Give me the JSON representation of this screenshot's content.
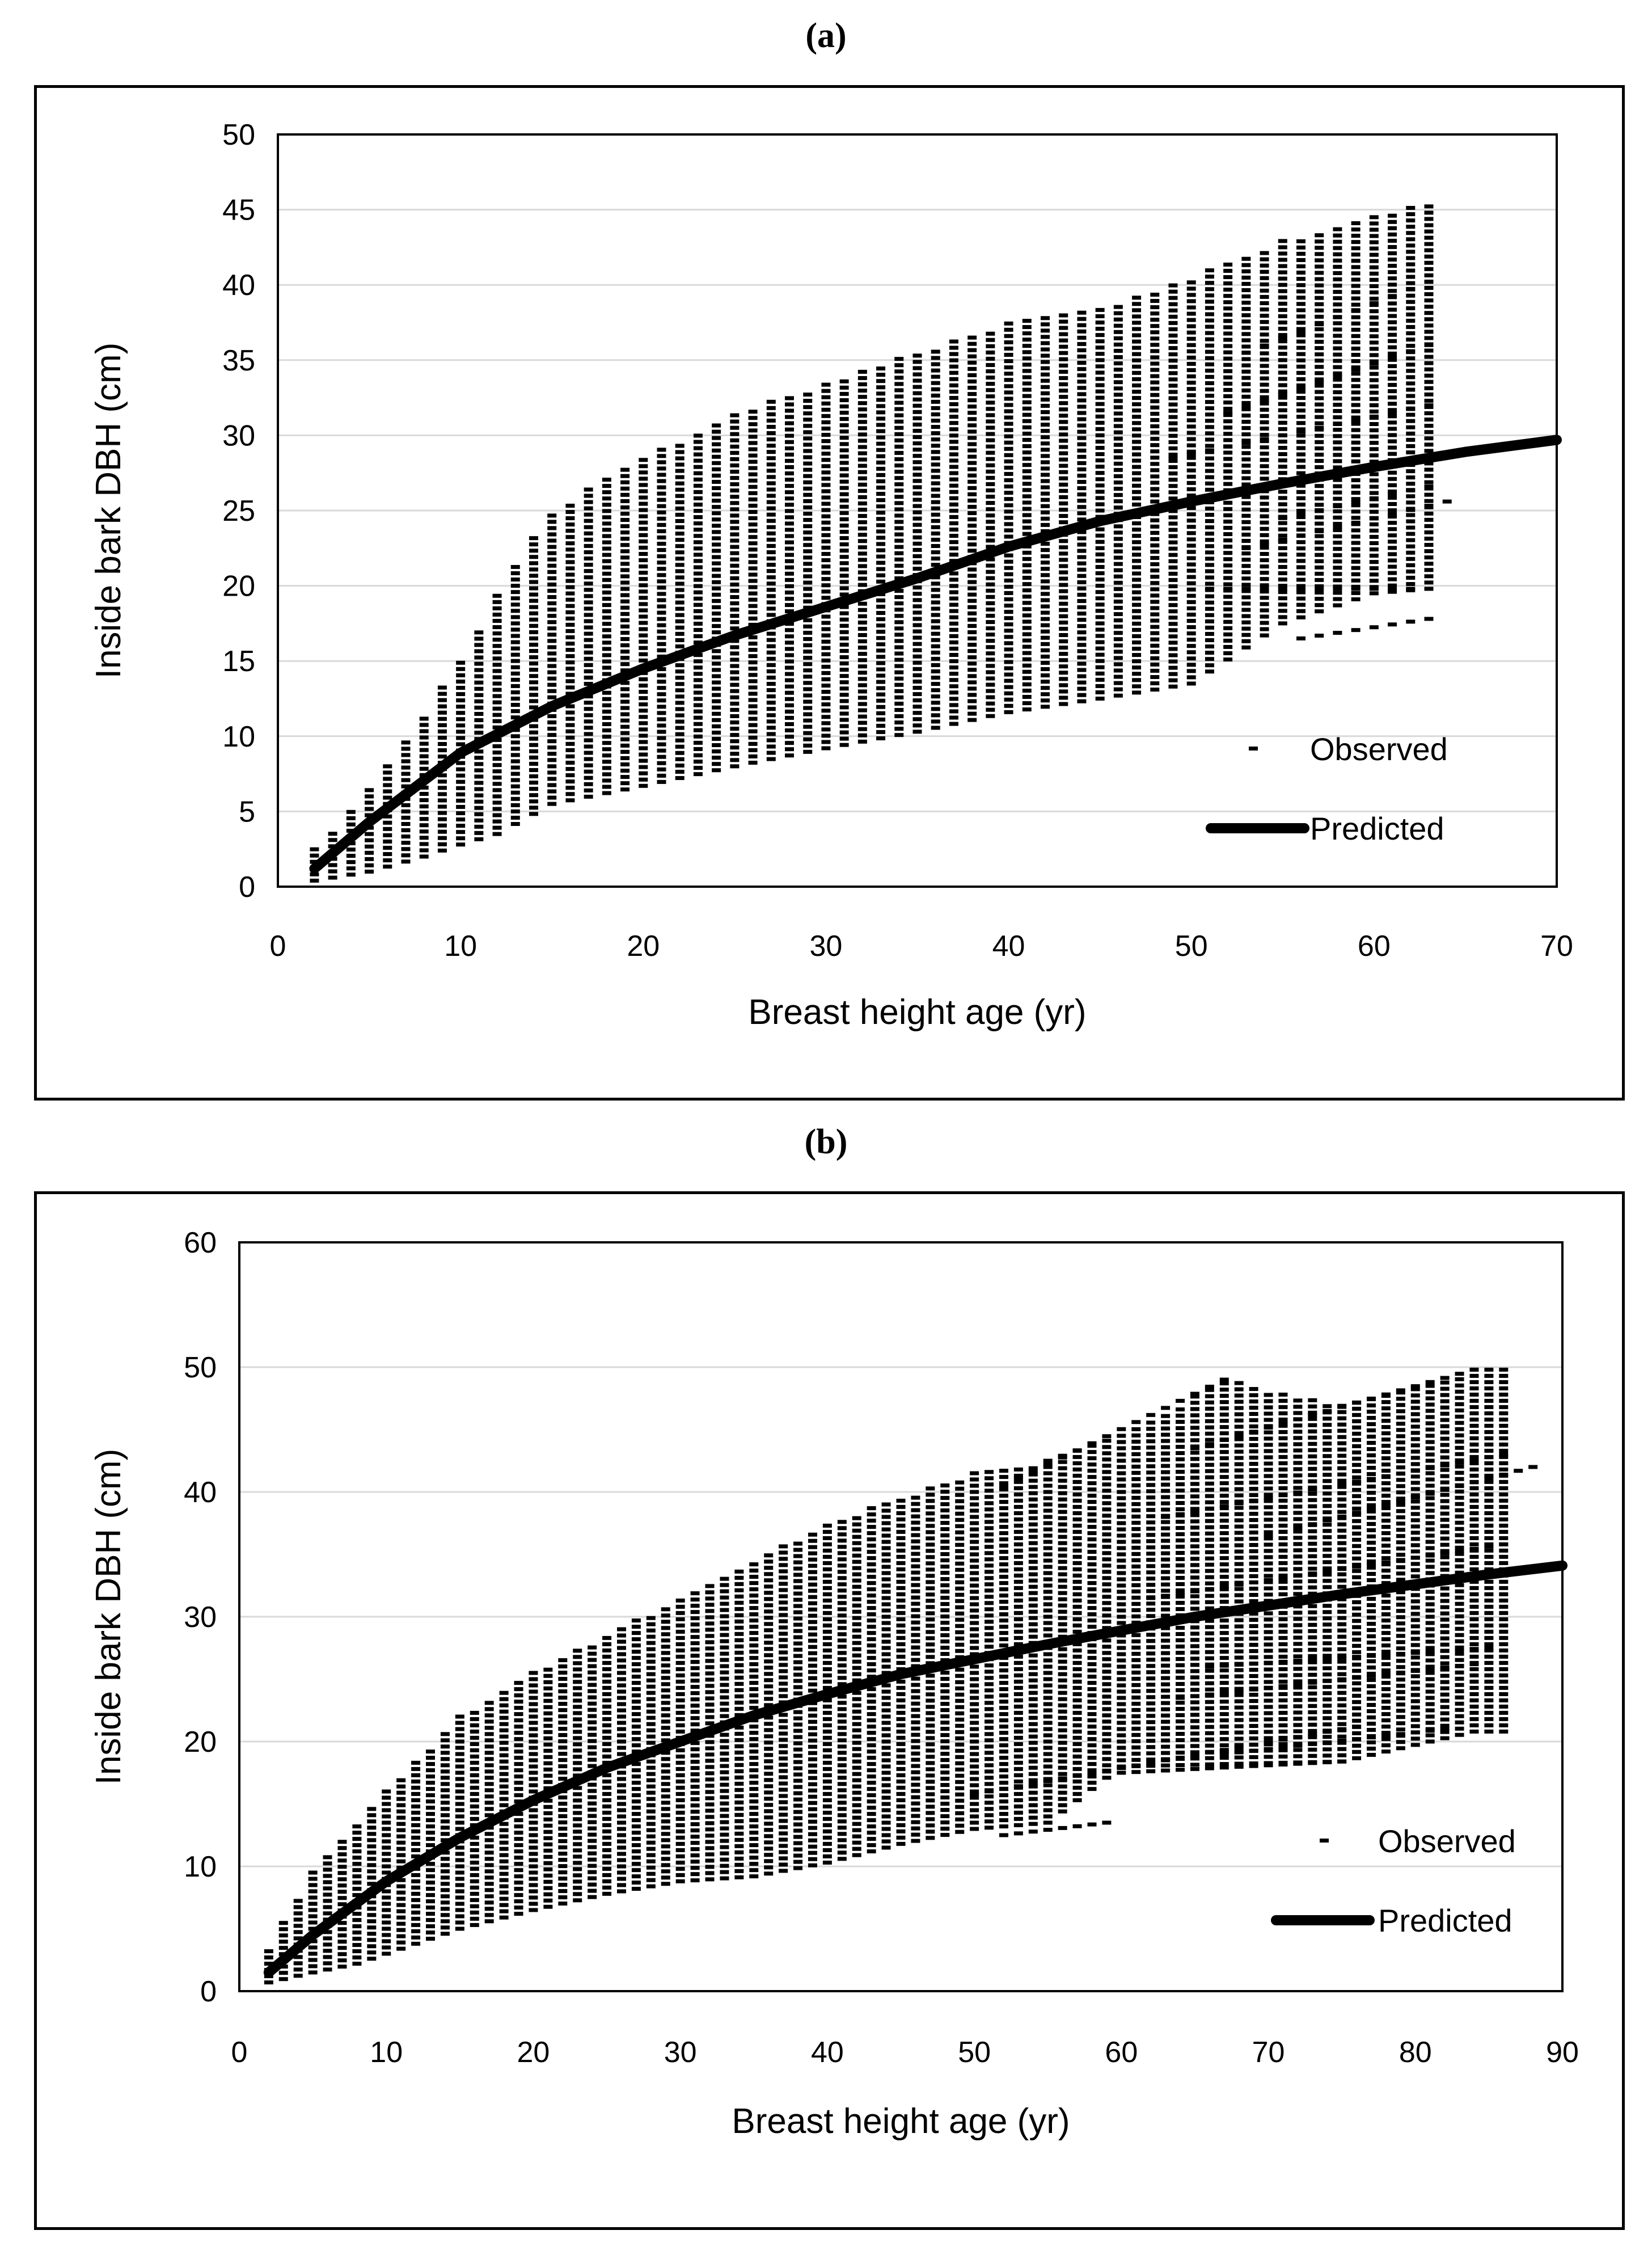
{
  "panel_labels": [
    "(a)",
    "(b)"
  ],
  "chart_data": [
    {
      "type": "scatter",
      "panel": "a",
      "title": "",
      "xlabel": "Breast height age (yr)",
      "ylabel": "Inside bark DBH (cm)",
      "xlim": [
        0,
        70
      ],
      "ylim": [
        0,
        50
      ],
      "xticks": [
        0,
        10,
        20,
        30,
        40,
        50,
        60,
        70
      ],
      "yticks": [
        0,
        5,
        10,
        15,
        20,
        25,
        30,
        35,
        40,
        45,
        50
      ],
      "grid": "horizontal",
      "legend": {
        "position": "bottom-right",
        "observed_label": "Observed",
        "predicted_label": "Predicted"
      },
      "series": [
        {
          "name": "Observed",
          "style": "dash-markers",
          "envelope": {
            "x": [
              2,
              5,
              8,
              10,
              12,
              15,
              20,
              25,
              30,
              35,
              40,
              45,
              50,
              55,
              60,
              63
            ],
            "ymax": [
              2.5,
              6.5,
              11.5,
              15,
              19.5,
              25,
              28.5,
              31.5,
              33.5,
              35.5,
              37.5,
              38.5,
              40.5,
              43,
              44.5,
              45.5
            ],
            "ymin": [
              0.4,
              1,
              2,
              2.8,
              3.5,
              5.5,
              6.7,
              8,
              9.2,
              10.3,
              11.6,
              12.5,
              13.5,
              17.5,
              19.5,
              19.8
            ],
            "xend": 63
          },
          "detached_trends": [
            {
              "x": [
                51,
                63
              ],
              "y": [
                19.8,
                19.8
              ]
            },
            {
              "x": [
                53,
                64
              ],
              "y": [
                22.5,
                25.6
              ]
            },
            {
              "x": [
                55,
                63
              ],
              "y": [
                24.5,
                26.6
              ]
            },
            {
              "x": [
                52,
                63
              ],
              "y": [
                31.5,
                36
              ]
            },
            {
              "x": [
                53,
                63
              ],
              "y": [
                35.5,
                40.2
              ]
            },
            {
              "x": [
                49,
                63
              ],
              "y": [
                28.5,
                32
              ]
            },
            {
              "x": [
                56,
                63
              ],
              "y": [
                16.5,
                17.8
              ]
            }
          ]
        },
        {
          "name": "Predicted",
          "style": "line",
          "x": [
            2,
            5,
            10,
            15,
            20,
            25,
            30,
            35,
            40,
            45,
            50,
            55,
            60,
            65,
            70
          ],
          "y": [
            1.2,
            4.3,
            8.9,
            12.0,
            14.5,
            16.7,
            18.6,
            20.5,
            22.6,
            24.3,
            25.6,
            26.8,
            27.9,
            28.9,
            29.7
          ]
        }
      ]
    },
    {
      "type": "scatter",
      "panel": "b",
      "title": "",
      "xlabel": "Breast height age (yr)",
      "ylabel": "Inside bark DBH (cm)",
      "xlim": [
        0,
        90
      ],
      "ylim": [
        0,
        60
      ],
      "xticks": [
        0,
        10,
        20,
        30,
        40,
        50,
        60,
        70,
        80,
        90
      ],
      "yticks": [
        0,
        10,
        20,
        30,
        40,
        50,
        60
      ],
      "grid": "horizontal",
      "legend": {
        "position": "bottom-right",
        "observed_label": "Observed",
        "predicted_label": "Predicted"
      },
      "series": [
        {
          "name": "Observed",
          "style": "dash-markers",
          "envelope": {
            "x": [
              2,
              5,
              8,
              10,
              15,
              20,
              25,
              30,
              35,
              40,
              45,
              50,
              55,
              60,
              67,
              75,
              84
            ],
            "ymax": [
              3.5,
              9.5,
              13.5,
              16,
              22,
              25.5,
              28.5,
              31.5,
              34.5,
              37.5,
              39.5,
              41.5,
              42.5,
              44.5,
              49,
              47,
              49.8
            ],
            "ymin": [
              0.7,
              1.5,
              2.2,
              3,
              5,
              6.5,
              7.8,
              8.8,
              9.2,
              10.3,
              11.8,
              13,
              13.5,
              18,
              18.2,
              18.4,
              20.8
            ],
            "xend": 86
          },
          "detached_trends": [
            {
              "x": [
                52,
                67
              ],
              "y": [
                40.5,
                49
              ]
            },
            {
              "x": [
                65,
                84
              ],
              "y": [
                43.5,
                49.8
              ]
            },
            {
              "x": [
                63,
                86
              ],
              "y": [
                38,
                43
              ]
            },
            {
              "x": [
                70,
                88
              ],
              "y": [
                36.5,
                42
              ]
            },
            {
              "x": [
                62,
                86
              ],
              "y": [
                31.5,
                35.8
              ]
            },
            {
              "x": [
                66,
                85
              ],
              "y": [
                26,
                27.5
              ]
            },
            {
              "x": [
                64,
                84
              ],
              "y": [
                23.5,
                26.2
              ]
            },
            {
              "x": [
                67,
                82
              ],
              "y": [
                19,
                21
              ]
            },
            {
              "x": [
                60,
                75
              ],
              "y": [
                17.5,
                18.4
              ]
            },
            {
              "x": [
                52,
                59
              ],
              "y": [
                12.5,
                13.5
              ]
            },
            {
              "x": [
                50,
                76
              ],
              "y": [
                15.8,
                21.2
              ]
            }
          ]
        },
        {
          "name": "Predicted",
          "style": "line",
          "x": [
            2,
            5,
            10,
            15,
            20,
            25,
            30,
            35,
            40,
            45,
            50,
            55,
            60,
            65,
            70,
            75,
            80,
            85,
            90
          ],
          "y": [
            1.5,
            4.5,
            8.8,
            12.3,
            15.3,
            17.9,
            20.0,
            22.1,
            23.8,
            25.4,
            26.6,
            27.8,
            28.9,
            30.0,
            30.9,
            31.8,
            32.6,
            33.4,
            34.1
          ]
        }
      ]
    }
  ]
}
